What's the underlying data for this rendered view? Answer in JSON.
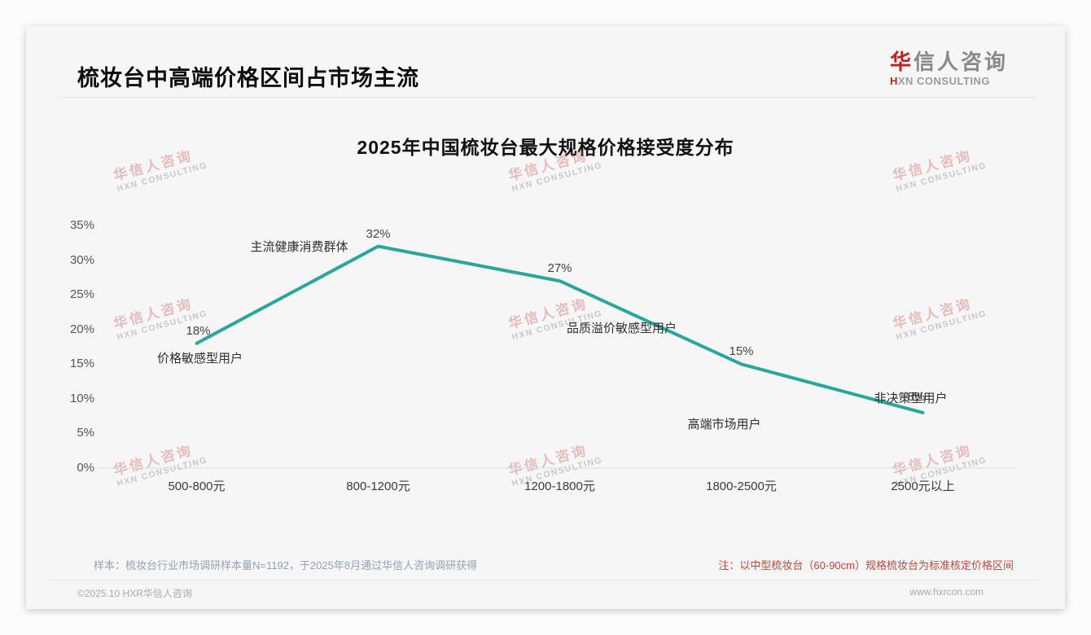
{
  "page": {
    "title": "梳妆台中高端价格区间占市场主流",
    "logo": {
      "brand_accent": "华",
      "brand_rest": "信人咨询",
      "subtitle_accent": "H",
      "subtitle_rest": "XN CONSULTING"
    },
    "watermark": {
      "line1": "华信人咨询",
      "line2": "HXN CONSULTING"
    },
    "footer": {
      "sample_note": "样本：梳妆台行业市场调研样本量N=1192，于2025年8月通过华信人咨询调研获得",
      "price_note": "注：以中型梳妆台（60-90cm）规格梳妆台为标准核定价格区间",
      "copyright": "©2025.10 HXR华信人咨询",
      "website": "www.hxrcon.com"
    }
  },
  "chart_data": {
    "type": "line",
    "title": "2025年中国梳妆台最大规格价格接受度分布",
    "categories": [
      "500-800元",
      "800-1200元",
      "1200-1800元",
      "1800-2500元",
      "2500元以上"
    ],
    "values": [
      18,
      32,
      27,
      15,
      8
    ],
    "value_labels": [
      "18%",
      "32%",
      "27%",
      "15%",
      "8%"
    ],
    "point_annotations": [
      "价格敏感型用户",
      "主流健康消费群体",
      "品质溢价敏感型用户",
      "高端市场用户",
      "非决策型用户"
    ],
    "xlabel": "",
    "ylabel": "",
    "ylim": [
      0,
      35
    ],
    "ytick_labels": [
      "0%",
      "5%",
      "10%",
      "15%",
      "20%",
      "25%",
      "30%",
      "35%"
    ],
    "line_color": "#2aa79b",
    "grid": false,
    "legend": false
  }
}
